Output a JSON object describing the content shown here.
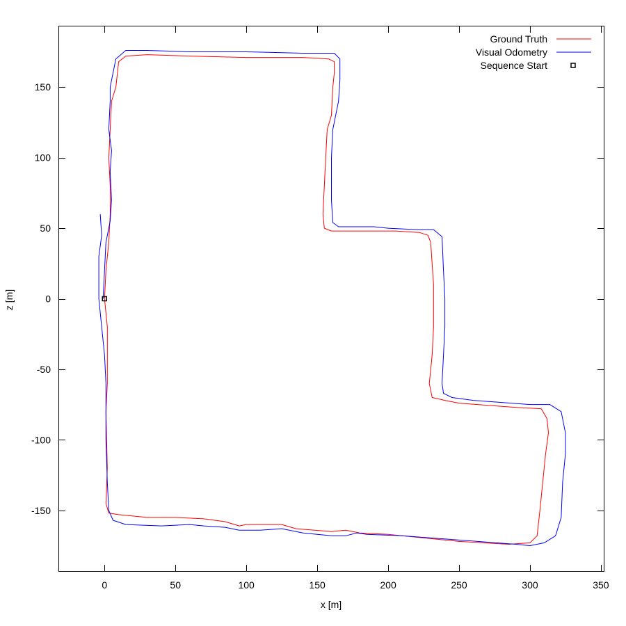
{
  "chart_data": {
    "type": "line",
    "title": "",
    "xlabel": "x [m]",
    "ylabel": "z [m]",
    "xlim": [
      -32,
      352
    ],
    "ylim": [
      -193,
      193
    ],
    "xticks": [
      0,
      50,
      100,
      150,
      200,
      250,
      300,
      350
    ],
    "yticks": [
      -150,
      -100,
      -50,
      0,
      50,
      100,
      150
    ],
    "grid": false,
    "legend_position": "top-right",
    "series": [
      {
        "name": "Ground Truth",
        "color": "#ff0000",
        "points": [
          [
            0,
            0
          ],
          [
            2,
            -20
          ],
          [
            2,
            -60
          ],
          [
            1,
            -80
          ],
          [
            2,
            -120
          ],
          [
            1,
            -145
          ],
          [
            3,
            -152
          ],
          [
            10,
            -153
          ],
          [
            30,
            -155
          ],
          [
            50,
            -155
          ],
          [
            70,
            -156
          ],
          [
            85,
            -158
          ],
          [
            95,
            -161
          ],
          [
            100,
            -160
          ],
          [
            110,
            -160
          ],
          [
            125,
            -160
          ],
          [
            135,
            -163
          ],
          [
            160,
            -165
          ],
          [
            170,
            -164
          ],
          [
            180,
            -166
          ],
          [
            200,
            -167
          ],
          [
            250,
            -172
          ],
          [
            285,
            -174
          ],
          [
            300,
            -173
          ],
          [
            305,
            -168
          ],
          [
            307,
            -150
          ],
          [
            309,
            -130
          ],
          [
            311,
            -110
          ],
          [
            313,
            -95
          ],
          [
            312,
            -85
          ],
          [
            308,
            -78
          ],
          [
            290,
            -77
          ],
          [
            250,
            -74
          ],
          [
            240,
            -72
          ],
          [
            231,
            -70
          ],
          [
            229,
            -60
          ],
          [
            231,
            -40
          ],
          [
            232,
            -20
          ],
          [
            232,
            10
          ],
          [
            230,
            40
          ],
          [
            228,
            45
          ],
          [
            222,
            47
          ],
          [
            205,
            48
          ],
          [
            190,
            48
          ],
          [
            180,
            48
          ],
          [
            170,
            48
          ],
          [
            160,
            48
          ],
          [
            155,
            50
          ],
          [
            154,
            60
          ],
          [
            155,
            80
          ],
          [
            156,
            100
          ],
          [
            157,
            120
          ],
          [
            160,
            130
          ],
          [
            161,
            150
          ],
          [
            162,
            160
          ],
          [
            162,
            168
          ],
          [
            158,
            170
          ],
          [
            140,
            171
          ],
          [
            100,
            171
          ],
          [
            60,
            172
          ],
          [
            30,
            173
          ],
          [
            15,
            172
          ],
          [
            10,
            168
          ],
          [
            8,
            150
          ],
          [
            5,
            140
          ],
          [
            4,
            120
          ],
          [
            3,
            100
          ],
          [
            4,
            80
          ],
          [
            4,
            60
          ],
          [
            3,
            40
          ],
          [
            1,
            20
          ],
          [
            0,
            0
          ]
        ]
      },
      {
        "name": "Visual Odometry",
        "color": "#0000ff",
        "points": [
          [
            -3,
            60
          ],
          [
            -2,
            45
          ],
          [
            -4,
            30
          ],
          [
            -4,
            15
          ],
          [
            -4,
            0
          ],
          [
            -2,
            -20
          ],
          [
            0,
            -40
          ],
          [
            1,
            -60
          ],
          [
            1,
            -100
          ],
          [
            2,
            -130
          ],
          [
            3,
            -150
          ],
          [
            6,
            -157
          ],
          [
            15,
            -160
          ],
          [
            40,
            -161
          ],
          [
            60,
            -160
          ],
          [
            70,
            -161
          ],
          [
            85,
            -162
          ],
          [
            95,
            -164
          ],
          [
            110,
            -164
          ],
          [
            125,
            -163
          ],
          [
            140,
            -166
          ],
          [
            160,
            -168
          ],
          [
            170,
            -168
          ],
          [
            178,
            -166
          ],
          [
            185,
            -167
          ],
          [
            210,
            -168
          ],
          [
            250,
            -171
          ],
          [
            290,
            -174
          ],
          [
            300,
            -175
          ],
          [
            310,
            -173
          ],
          [
            318,
            -168
          ],
          [
            322,
            -155
          ],
          [
            323,
            -130
          ],
          [
            325,
            -110
          ],
          [
            325,
            -95
          ],
          [
            322,
            -80
          ],
          [
            314,
            -75
          ],
          [
            300,
            -75
          ],
          [
            260,
            -72
          ],
          [
            245,
            -70
          ],
          [
            239,
            -67
          ],
          [
            238,
            -60
          ],
          [
            239,
            -40
          ],
          [
            240,
            -20
          ],
          [
            240,
            0
          ],
          [
            239,
            20
          ],
          [
            238,
            44
          ],
          [
            232,
            49
          ],
          [
            220,
            49
          ],
          [
            200,
            50
          ],
          [
            190,
            51
          ],
          [
            175,
            51
          ],
          [
            165,
            51
          ],
          [
            161,
            54
          ],
          [
            160,
            70
          ],
          [
            160,
            100
          ],
          [
            161,
            120
          ],
          [
            163,
            130
          ],
          [
            165,
            140
          ],
          [
            166,
            155
          ],
          [
            166,
            170
          ],
          [
            162,
            174
          ],
          [
            140,
            174
          ],
          [
            100,
            175
          ],
          [
            60,
            175
          ],
          [
            30,
            176
          ],
          [
            15,
            176
          ],
          [
            8,
            170
          ],
          [
            6,
            160
          ],
          [
            4,
            150
          ],
          [
            4,
            140
          ],
          [
            3,
            120
          ],
          [
            5,
            105
          ],
          [
            4,
            90
          ],
          [
            5,
            70
          ],
          [
            4,
            55
          ],
          [
            1,
            40
          ],
          [
            0,
            20
          ],
          [
            -1,
            0
          ]
        ]
      },
      {
        "name": "Sequence Start",
        "marker": "square",
        "points": [
          [
            0,
            0
          ]
        ]
      }
    ]
  }
}
